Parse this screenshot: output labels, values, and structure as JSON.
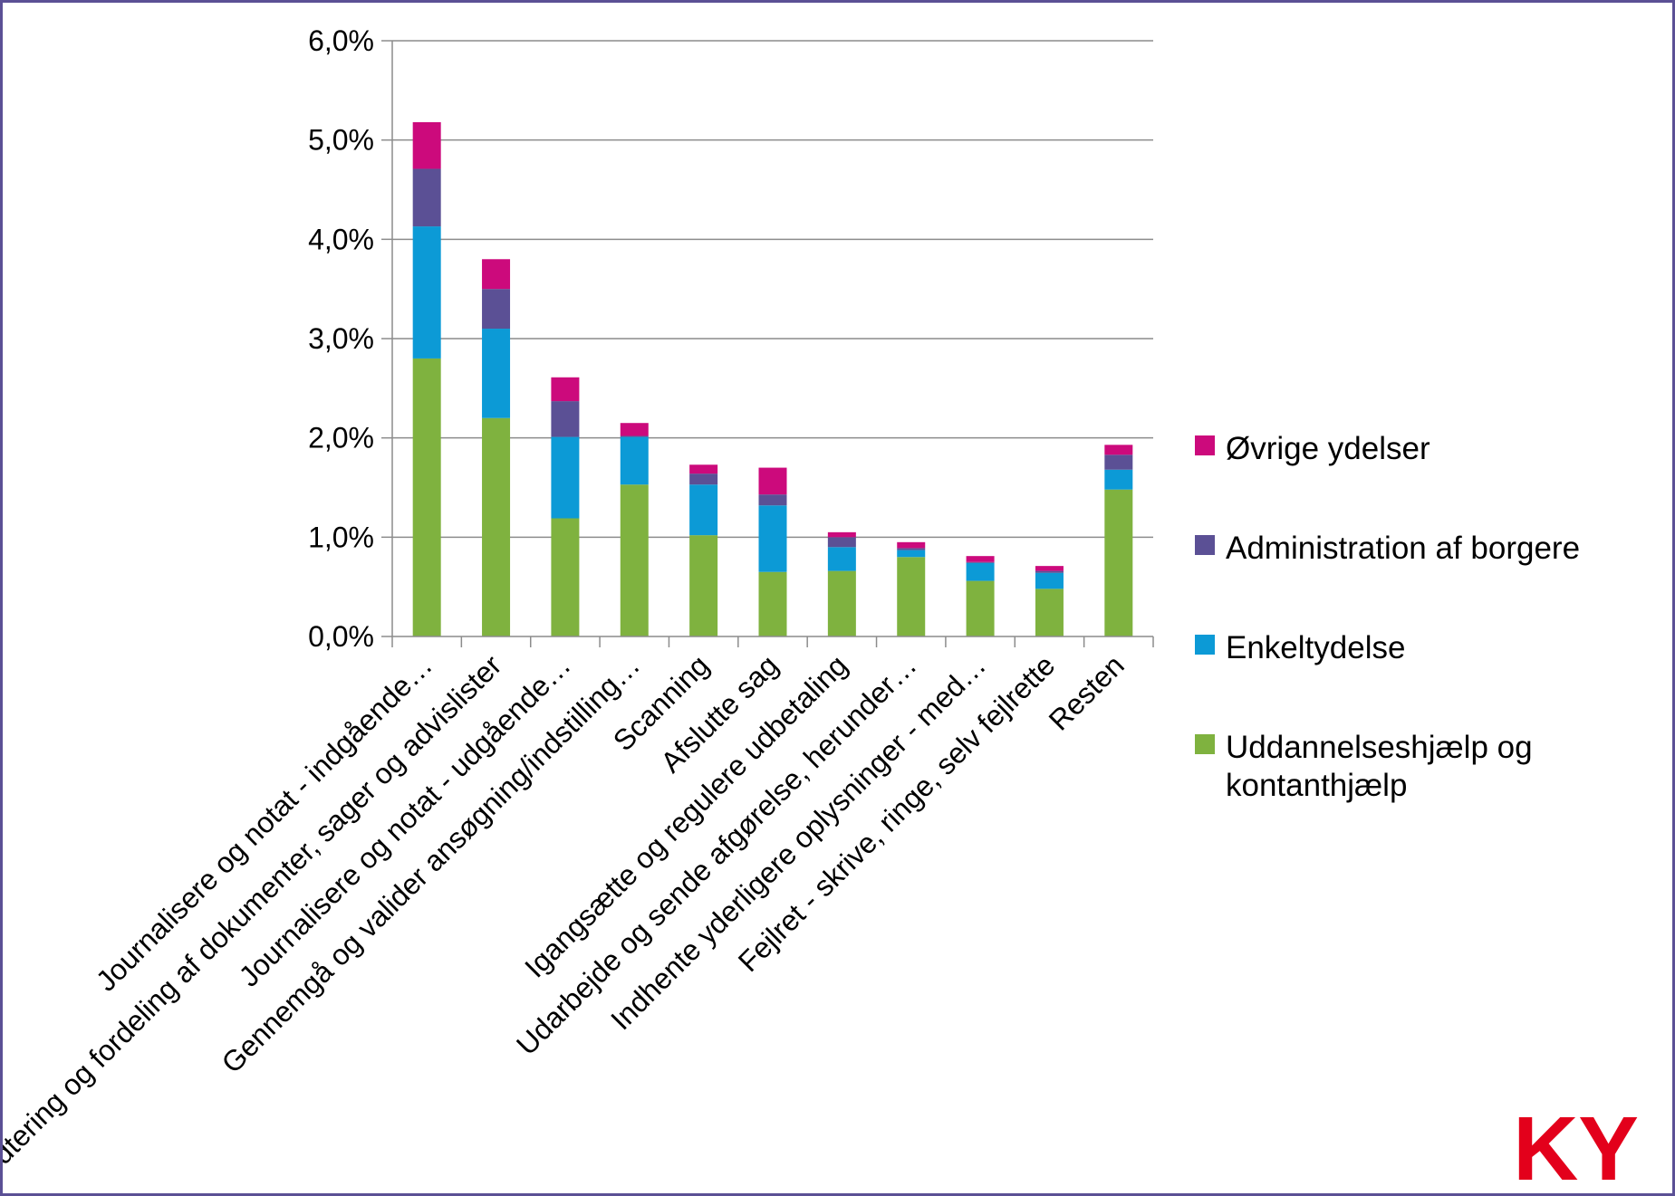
{
  "chart_data": {
    "type": "bar",
    "stacked": true,
    "categories": [
      "Journalisere og notat - indgående…",
      "Håndtering og fordeling af dokumenter, sager og advislister",
      "Journalisere og notat - udgående…",
      "Gennemgå og valider ansøgning/indstilling…",
      "Scanning",
      "Afslutte sag",
      "Igangsætte og regulere udbetaling",
      "Udarbejde og sende afgørelse, herunder…",
      "Indhente yderligere oplysninger - med…",
      "Fejlret - skrive, ringe, selv fejlrette",
      "Resten"
    ],
    "series": [
      {
        "name": "Uddannelseshjælp og kontanthjælp",
        "color": "#7fb23f",
        "values": [
          2.8,
          2.2,
          1.19,
          1.53,
          1.02,
          0.65,
          0.66,
          0.8,
          0.56,
          0.48,
          1.48
        ]
      },
      {
        "name": "Enkeltydelse",
        "color": "#0c9ad6",
        "values": [
          1.33,
          0.9,
          0.82,
          0.48,
          0.51,
          0.67,
          0.24,
          0.07,
          0.18,
          0.16,
          0.2
        ]
      },
      {
        "name": "Administration af borgere",
        "color": "#5b5095",
        "values": [
          0.58,
          0.4,
          0.36,
          0.01,
          0.11,
          0.11,
          0.1,
          0.02,
          0.01,
          0.02,
          0.15
        ]
      },
      {
        "name": "Øvrige ydelser",
        "color": "#cc0a7c",
        "values": [
          0.47,
          0.3,
          0.24,
          0.13,
          0.09,
          0.27,
          0.05,
          0.06,
          0.06,
          0.05,
          0.1
        ]
      }
    ],
    "ylim": [
      0,
      6
    ],
    "yticks": [
      "0,0%",
      "1,0%",
      "2,0%",
      "3,0%",
      "4,0%",
      "5,0%",
      "6,0%"
    ],
    "grid": true,
    "legend_position": "right",
    "xlabel": "",
    "ylabel": ""
  },
  "logo": {
    "text": "KY",
    "color": "#e3001b"
  }
}
